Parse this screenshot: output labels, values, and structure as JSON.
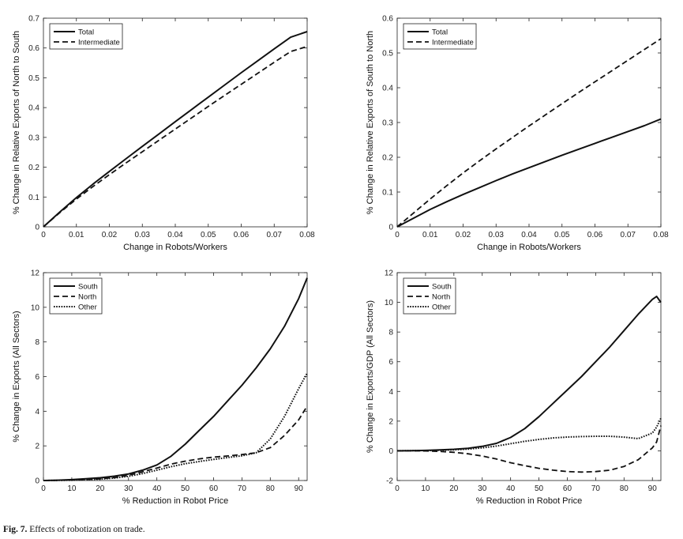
{
  "figure_caption": {
    "label": "Fig. 7.",
    "text": "Effects of robotization on trade."
  },
  "chart_data": [
    {
      "type": "line",
      "xlabel": "Change in Robots/Workers",
      "ylabel": "% Change in Relative Exports of North to South",
      "xlim": [
        0,
        0.08
      ],
      "ylim": [
        0,
        0.7
      ],
      "xticks": [
        0,
        0.01,
        0.02,
        0.03,
        0.04,
        0.05,
        0.06,
        0.07,
        0.08
      ],
      "xtick_labels": [
        "0",
        "0.01",
        "0.02",
        "0.03",
        "0.04",
        "0.05",
        "0.06",
        "0.07",
        "0.08"
      ],
      "yticks": [
        0,
        0.1,
        0.2,
        0.3,
        0.4,
        0.5,
        0.6,
        0.7
      ],
      "ytick_labels": [
        "0",
        "0.1",
        "0.2",
        "0.3",
        "0.4",
        "0.5",
        "0.6",
        "0.7"
      ],
      "legend_position": "top-left",
      "x": [
        0,
        0.005,
        0.01,
        0.015,
        0.02,
        0.025,
        0.03,
        0.035,
        0.04,
        0.045,
        0.05,
        0.055,
        0.06,
        0.065,
        0.07,
        0.075,
        0.08
      ],
      "series": [
        {
          "name": "Total",
          "style": "solid",
          "values": [
            0,
            0.05,
            0.098,
            0.143,
            0.186,
            0.228,
            0.27,
            0.311,
            0.353,
            0.394,
            0.435,
            0.476,
            0.517,
            0.557,
            0.597,
            0.636,
            0.655
          ]
        },
        {
          "name": "Intermediate",
          "style": "dashed",
          "values": [
            0,
            0.048,
            0.093,
            0.135,
            0.175,
            0.214,
            0.252,
            0.29,
            0.328,
            0.366,
            0.404,
            0.441,
            0.478,
            0.515,
            0.552,
            0.588,
            0.605
          ]
        }
      ]
    },
    {
      "type": "line",
      "xlabel": "Change in Robots/Workers",
      "ylabel": "% Change in Relative Exports of South to North",
      "xlim": [
        0,
        0.08
      ],
      "ylim": [
        0,
        0.6
      ],
      "xticks": [
        0,
        0.01,
        0.02,
        0.03,
        0.04,
        0.05,
        0.06,
        0.07,
        0.08
      ],
      "xtick_labels": [
        "0",
        "0.01",
        "0.02",
        "0.03",
        "0.04",
        "0.05",
        "0.06",
        "0.07",
        "0.08"
      ],
      "yticks": [
        0,
        0.1,
        0.2,
        0.3,
        0.4,
        0.5,
        0.6
      ],
      "ytick_labels": [
        "0",
        "0.1",
        "0.2",
        "0.3",
        "0.4",
        "0.5",
        "0.6"
      ],
      "legend_position": "top-left",
      "x": [
        0,
        0.005,
        0.01,
        0.015,
        0.02,
        0.025,
        0.03,
        0.035,
        0.04,
        0.045,
        0.05,
        0.055,
        0.06,
        0.065,
        0.07,
        0.075,
        0.08
      ],
      "series": [
        {
          "name": "Total",
          "style": "solid",
          "values": [
            0,
            0.025,
            0.05,
            0.072,
            0.093,
            0.113,
            0.133,
            0.152,
            0.17,
            0.188,
            0.206,
            0.223,
            0.24,
            0.257,
            0.274,
            0.291,
            0.31
          ]
        },
        {
          "name": "Intermediate",
          "style": "dashed",
          "values": [
            0,
            0.04,
            0.08,
            0.118,
            0.155,
            0.19,
            0.224,
            0.257,
            0.29,
            0.322,
            0.354,
            0.386,
            0.417,
            0.448,
            0.479,
            0.51,
            0.541
          ]
        }
      ]
    },
    {
      "type": "line",
      "xlabel": "% Reduction in Robot Price",
      "ylabel": "% Change in Exports (All Sectors)",
      "xlim": [
        0,
        93
      ],
      "ylim": [
        0,
        12
      ],
      "xticks": [
        0,
        10,
        20,
        30,
        40,
        50,
        60,
        70,
        80,
        90
      ],
      "xtick_labels": [
        "0",
        "10",
        "20",
        "30",
        "40",
        "50",
        "60",
        "70",
        "80",
        "90"
      ],
      "yticks": [
        0,
        2,
        4,
        6,
        8,
        10,
        12
      ],
      "ytick_labels": [
        "0",
        "2",
        "4",
        "6",
        "8",
        "10",
        "12"
      ],
      "legend_position": "top-left",
      "x": [
        0,
        5,
        10,
        15,
        20,
        25,
        30,
        35,
        40,
        45,
        50,
        55,
        60,
        65,
        70,
        75,
        80,
        85,
        90,
        93
      ],
      "series": [
        {
          "name": "South",
          "style": "solid",
          "values": [
            0,
            0.02,
            0.05,
            0.1,
            0.16,
            0.25,
            0.38,
            0.6,
            0.9,
            1.4,
            2.1,
            2.9,
            3.7,
            4.6,
            5.5,
            6.5,
            7.6,
            8.9,
            10.5,
            11.7
          ]
        },
        {
          "name": "North",
          "style": "dashed",
          "values": [
            0,
            0.01,
            0.03,
            0.06,
            0.1,
            0.17,
            0.3,
            0.5,
            0.72,
            0.95,
            1.12,
            1.25,
            1.35,
            1.42,
            1.5,
            1.6,
            1.9,
            2.6,
            3.5,
            4.3
          ]
        },
        {
          "name": "Other",
          "style": "dotted",
          "values": [
            0,
            0.01,
            0.02,
            0.05,
            0.08,
            0.14,
            0.24,
            0.4,
            0.6,
            0.8,
            0.97,
            1.1,
            1.22,
            1.33,
            1.43,
            1.6,
            2.4,
            3.7,
            5.3,
            6.2
          ]
        }
      ]
    },
    {
      "type": "line",
      "xlabel": "% Reduction in Robot Price",
      "ylabel": "% Change in Exports/GDP (All Sectors)",
      "xlim": [
        0,
        93
      ],
      "ylim": [
        -2,
        12
      ],
      "xticks": [
        0,
        10,
        20,
        30,
        40,
        50,
        60,
        70,
        80,
        90
      ],
      "xtick_labels": [
        "0",
        "10",
        "20",
        "30",
        "40",
        "50",
        "60",
        "70",
        "80",
        "90"
      ],
      "yticks": [
        -2,
        0,
        2,
        4,
        6,
        8,
        10,
        12
      ],
      "ytick_labels": [
        "-2",
        "0",
        "2",
        "4",
        "6",
        "8",
        "10",
        "12"
      ],
      "legend_position": "top-left",
      "x": [
        0,
        5,
        10,
        15,
        20,
        25,
        30,
        35,
        40,
        45,
        50,
        55,
        60,
        65,
        70,
        75,
        80,
        85,
        90,
        91.5,
        93
      ],
      "series": [
        {
          "name": "South",
          "style": "solid",
          "values": [
            0,
            0.01,
            0.03,
            0.06,
            0.1,
            0.17,
            0.3,
            0.5,
            0.9,
            1.5,
            2.3,
            3.2,
            4.1,
            5.0,
            6.0,
            7.0,
            8.1,
            9.2,
            10.2,
            10.4,
            10.0
          ]
        },
        {
          "name": "North",
          "style": "dashed",
          "values": [
            0,
            0,
            -0.01,
            -0.04,
            -0.1,
            -0.2,
            -0.35,
            -0.55,
            -0.8,
            -1.0,
            -1.18,
            -1.3,
            -1.4,
            -1.43,
            -1.4,
            -1.3,
            -1.05,
            -0.6,
            0.2,
            0.6,
            1.7
          ]
        },
        {
          "name": "Other",
          "style": "dotted",
          "values": [
            0,
            0.01,
            0.02,
            0.04,
            0.07,
            0.12,
            0.2,
            0.32,
            0.48,
            0.64,
            0.77,
            0.87,
            0.93,
            0.96,
            0.98,
            0.98,
            0.92,
            0.82,
            1.2,
            1.6,
            2.2
          ]
        }
      ]
    }
  ]
}
